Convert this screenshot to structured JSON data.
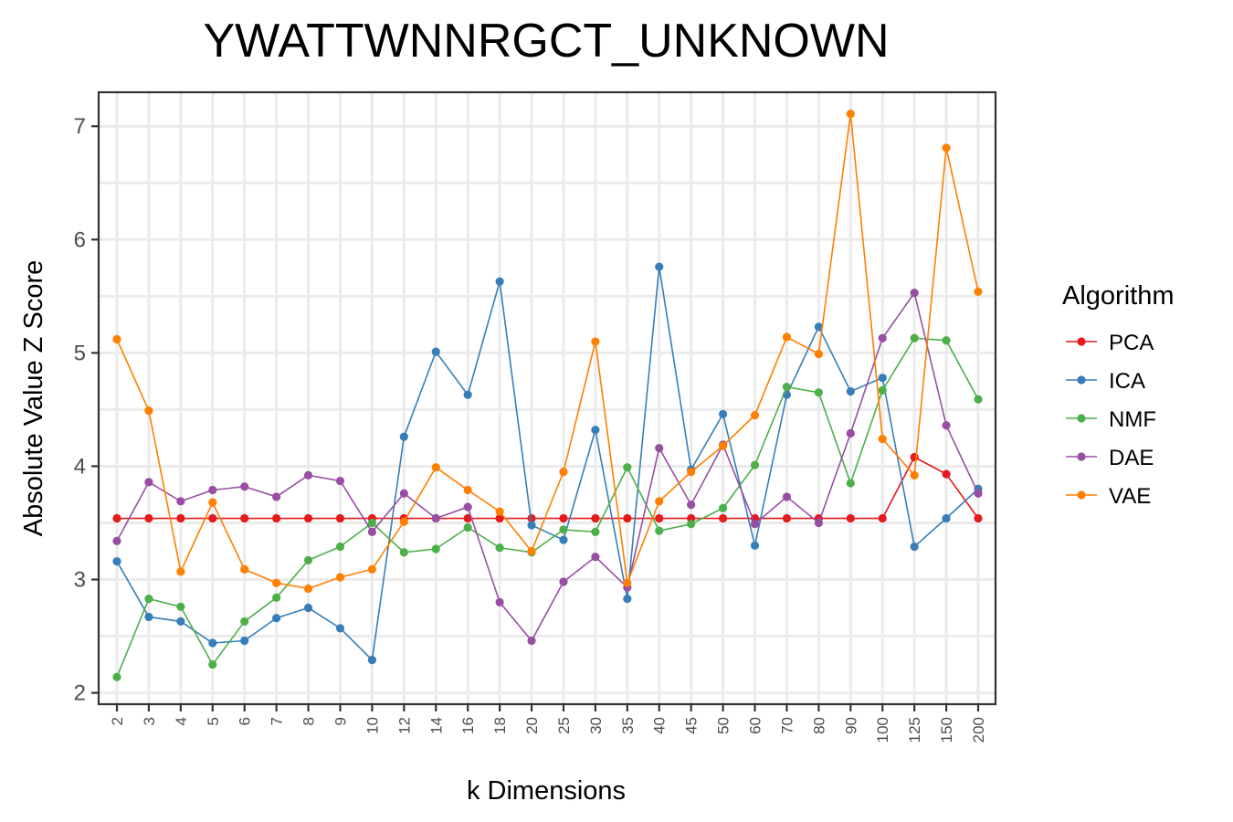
{
  "chart_data": {
    "type": "line",
    "title": "YWATTWNNRGCT_UNKNOWN",
    "xlabel": "k Dimensions",
    "ylabel": "Absolute Value Z Score",
    "categories": [
      "2",
      "3",
      "4",
      "5",
      "6",
      "7",
      "8",
      "9",
      "10",
      "12",
      "14",
      "16",
      "18",
      "20",
      "25",
      "30",
      "35",
      "40",
      "45",
      "50",
      "60",
      "70",
      "80",
      "90",
      "100",
      "125",
      "150",
      "200"
    ],
    "yticks": [
      2,
      3,
      4,
      5,
      6,
      7
    ],
    "ylim": [
      1.9,
      7.3
    ],
    "grid": true,
    "legend": {
      "title": "Algorithm",
      "position": "right"
    },
    "series": [
      {
        "name": "PCA",
        "color": "#E41A1C",
        "values": [
          3.54,
          3.54,
          3.54,
          3.54,
          3.54,
          3.54,
          3.54,
          3.54,
          3.54,
          3.54,
          3.54,
          3.54,
          3.54,
          3.54,
          3.54,
          3.54,
          3.54,
          3.54,
          3.54,
          3.54,
          3.54,
          3.54,
          3.54,
          3.54,
          3.54,
          4.08,
          3.93,
          3.54
        ]
      },
      {
        "name": "ICA",
        "color": "#377EB8",
        "values": [
          3.16,
          2.67,
          2.63,
          2.44,
          2.46,
          2.66,
          2.75,
          2.57,
          2.29,
          4.26,
          5.01,
          4.63,
          5.63,
          3.48,
          3.35,
          4.32,
          2.83,
          5.76,
          3.97,
          4.46,
          3.3,
          4.63,
          5.23,
          4.66,
          4.78,
          3.29,
          3.54,
          3.8
        ]
      },
      {
        "name": "NMF",
        "color": "#4DAF4A",
        "values": [
          2.14,
          2.83,
          2.76,
          2.25,
          2.63,
          2.84,
          3.17,
          3.29,
          3.5,
          3.24,
          3.27,
          3.46,
          3.28,
          3.24,
          3.44,
          3.42,
          3.99,
          3.43,
          3.49,
          3.63,
          4.01,
          4.7,
          4.65,
          3.85,
          4.67,
          5.13,
          5.11,
          4.59
        ]
      },
      {
        "name": "DAE",
        "color": "#984EA3",
        "values": [
          3.34,
          3.86,
          3.69,
          3.79,
          3.82,
          3.73,
          3.92,
          3.87,
          3.42,
          3.76,
          3.54,
          3.64,
          2.8,
          2.46,
          2.98,
          3.2,
          2.93,
          4.16,
          3.66,
          4.19,
          3.49,
          3.73,
          3.5,
          4.29,
          5.13,
          5.53,
          4.36,
          3.76
        ]
      },
      {
        "name": "VAE",
        "color": "#FF7F00",
        "values": [
          5.12,
          4.49,
          3.07,
          3.68,
          3.09,
          2.97,
          2.92,
          3.02,
          3.09,
          3.51,
          3.99,
          3.79,
          3.6,
          3.25,
          3.95,
          5.1,
          2.97,
          3.69,
          3.95,
          4.18,
          4.45,
          5.14,
          4.99,
          7.11,
          4.24,
          3.92,
          6.81,
          5.54
        ]
      }
    ]
  }
}
